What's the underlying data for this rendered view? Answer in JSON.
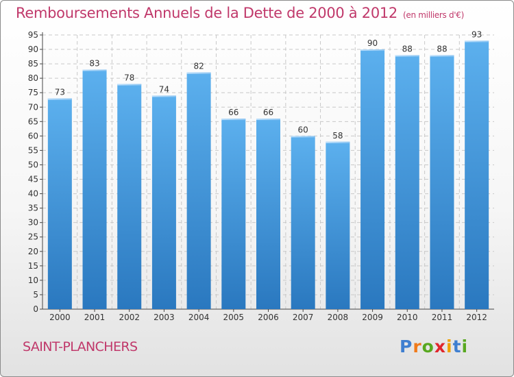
{
  "chart_data": {
    "type": "bar",
    "title": "Remboursements Annuels de la Dette de 2000 à 2012",
    "unit": "(en milliers d'€)",
    "categories": [
      "2000",
      "2001",
      "2002",
      "2003",
      "2004",
      "2005",
      "2006",
      "2007",
      "2008",
      "2009",
      "2010",
      "2011",
      "2012"
    ],
    "values": [
      73,
      83,
      78,
      74,
      82,
      66,
      66,
      60,
      58,
      90,
      88,
      88,
      93
    ],
    "ylim": [
      0,
      95
    ],
    "yticks": [
      0,
      5,
      10,
      15,
      20,
      25,
      30,
      35,
      40,
      45,
      50,
      55,
      60,
      65,
      70,
      75,
      80,
      85,
      90,
      95
    ],
    "grid": true,
    "bar_color": "#3f93d8"
  },
  "commune": "SAINT-PLANCHERS",
  "logo": {
    "text": "Proxiti",
    "letter_colors": [
      "#3f7fd0",
      "#f07a1a",
      "#58a820",
      "#e0262c",
      "#f0a000",
      "#3f7fd0",
      "#58a820"
    ]
  }
}
